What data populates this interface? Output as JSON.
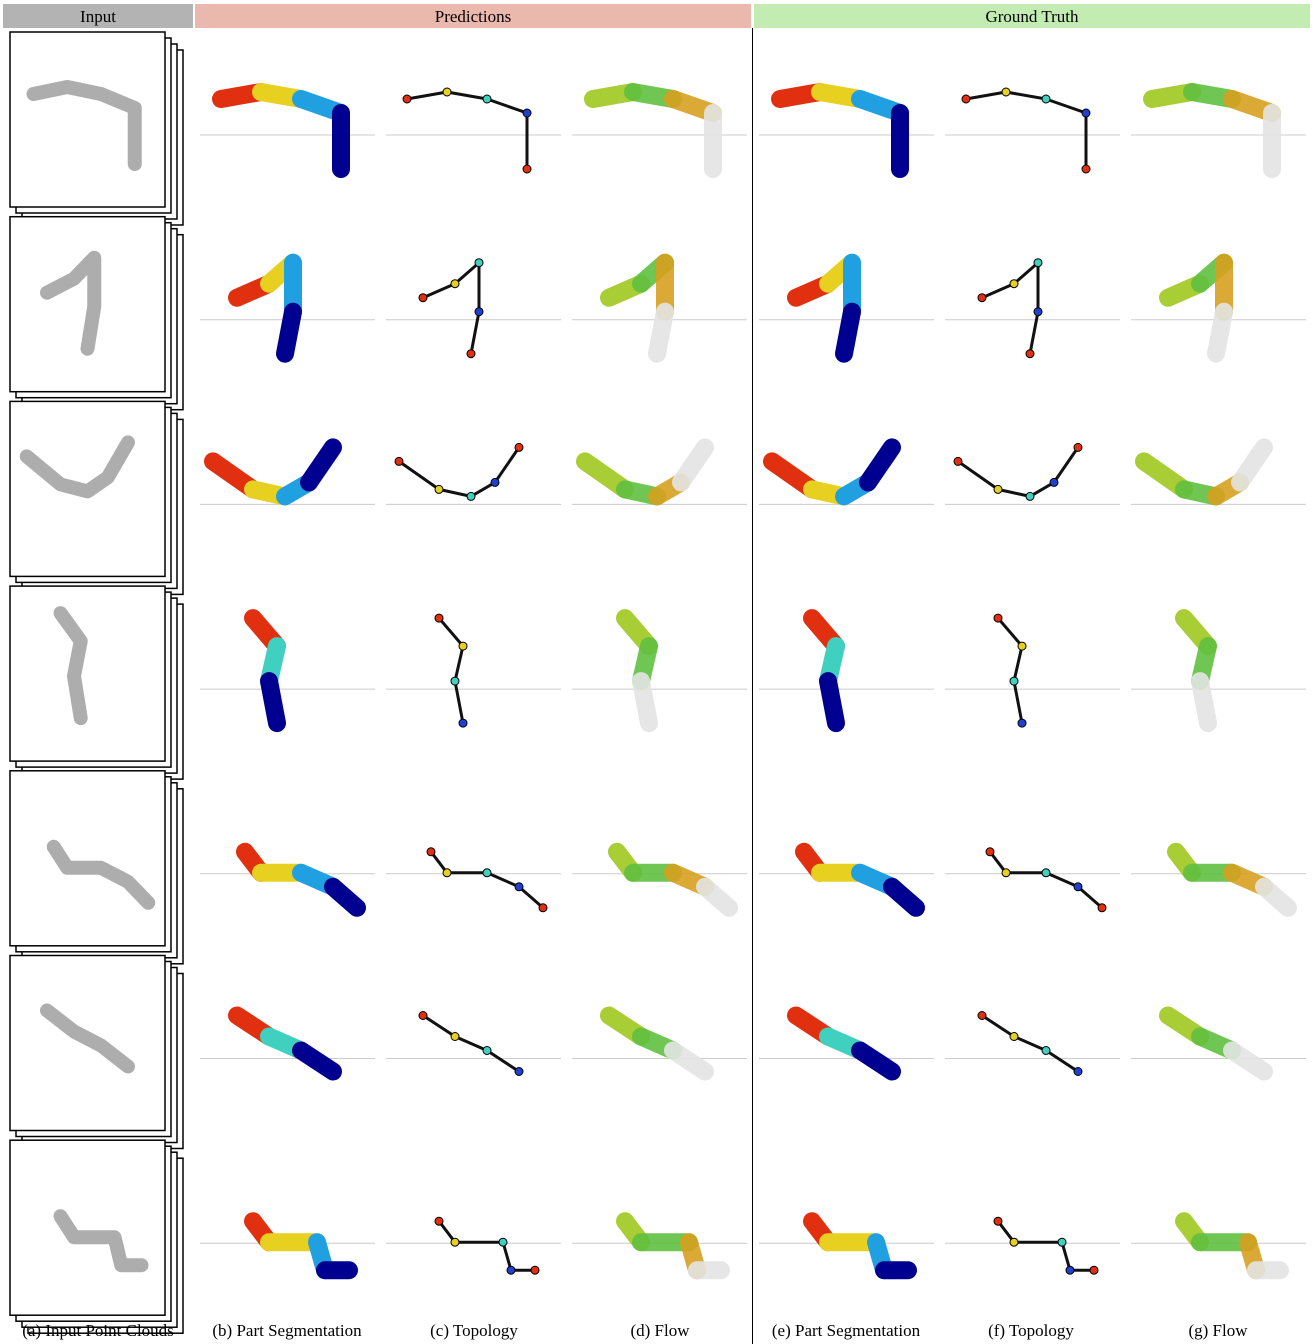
{
  "header": {
    "input": "Input",
    "predictions": "Predictions",
    "ground_truth": "Ground Truth"
  },
  "captions": [
    "(a) Input Point Clouds",
    "(b) Part Segmentation",
    "(c) Topology",
    "(d) Flow",
    "(e) Part Segmentation",
    "(f) Topology",
    "(g) Flow"
  ]
}
